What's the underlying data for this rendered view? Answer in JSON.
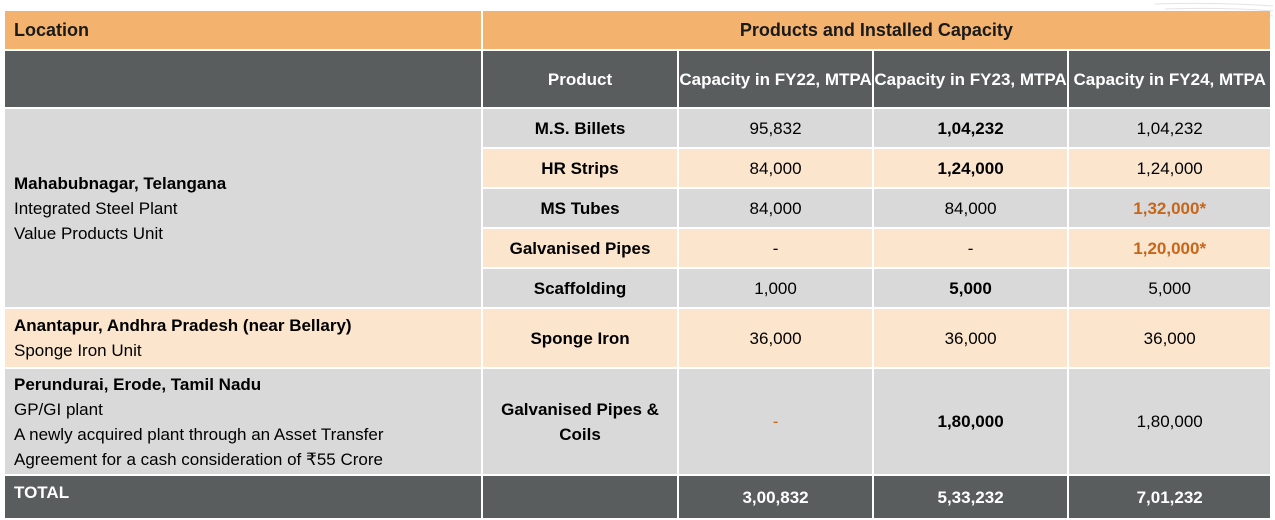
{
  "header": {
    "location": "Location",
    "products_capacity": "Products and Installed Capacity",
    "product": "Product",
    "fy22": "Capacity in FY22, MTPA",
    "fy23": "Capacity in FY23, MTPA",
    "fy24": "Capacity in FY24, MTPA"
  },
  "locations": {
    "mahabubnagar": {
      "name": "Mahabubnagar, Telangana",
      "line1": "Integrated Steel Plant",
      "line2": "Value Products Unit"
    },
    "anantapur": {
      "name": "Anantapur, Andhra Pradesh (near Bellary)",
      "line1": "Sponge Iron Unit"
    },
    "perundurai": {
      "name": "Perundurai, Erode, Tamil Nadu",
      "line1": "GP/GI plant",
      "line2": "A newly acquired plant through an Asset Transfer Agreement for a cash consideration of ₹55 Crore"
    }
  },
  "rows": [
    {
      "product": "M.S. Billets",
      "fy22": "95,832",
      "fy23": "1,04,232",
      "fy24": "1,04,232"
    },
    {
      "product": "HR Strips",
      "fy22": "84,000",
      "fy23": "1,24,000",
      "fy24": "1,24,000"
    },
    {
      "product": "MS Tubes",
      "fy22": "84,000",
      "fy23": "84,000",
      "fy24": "1,32,000*"
    },
    {
      "product": "Galvanised Pipes",
      "fy22": "-",
      "fy23": "-",
      "fy24": "1,20,000*"
    },
    {
      "product": "Scaffolding",
      "fy22": "1,000",
      "fy23": "5,000",
      "fy24": "5,000"
    },
    {
      "product": "Sponge Iron",
      "fy22": "36,000",
      "fy23": "36,000",
      "fy24": "36,000"
    },
    {
      "product": "Galvanised Pipes & Coils",
      "fy22": "-",
      "fy23": "1,80,000",
      "fy24": "1,80,000"
    }
  ],
  "total": {
    "label": "TOTAL",
    "fy22": "3,00,832",
    "fy23": "5,33,232",
    "fy24": "7,01,232"
  }
}
